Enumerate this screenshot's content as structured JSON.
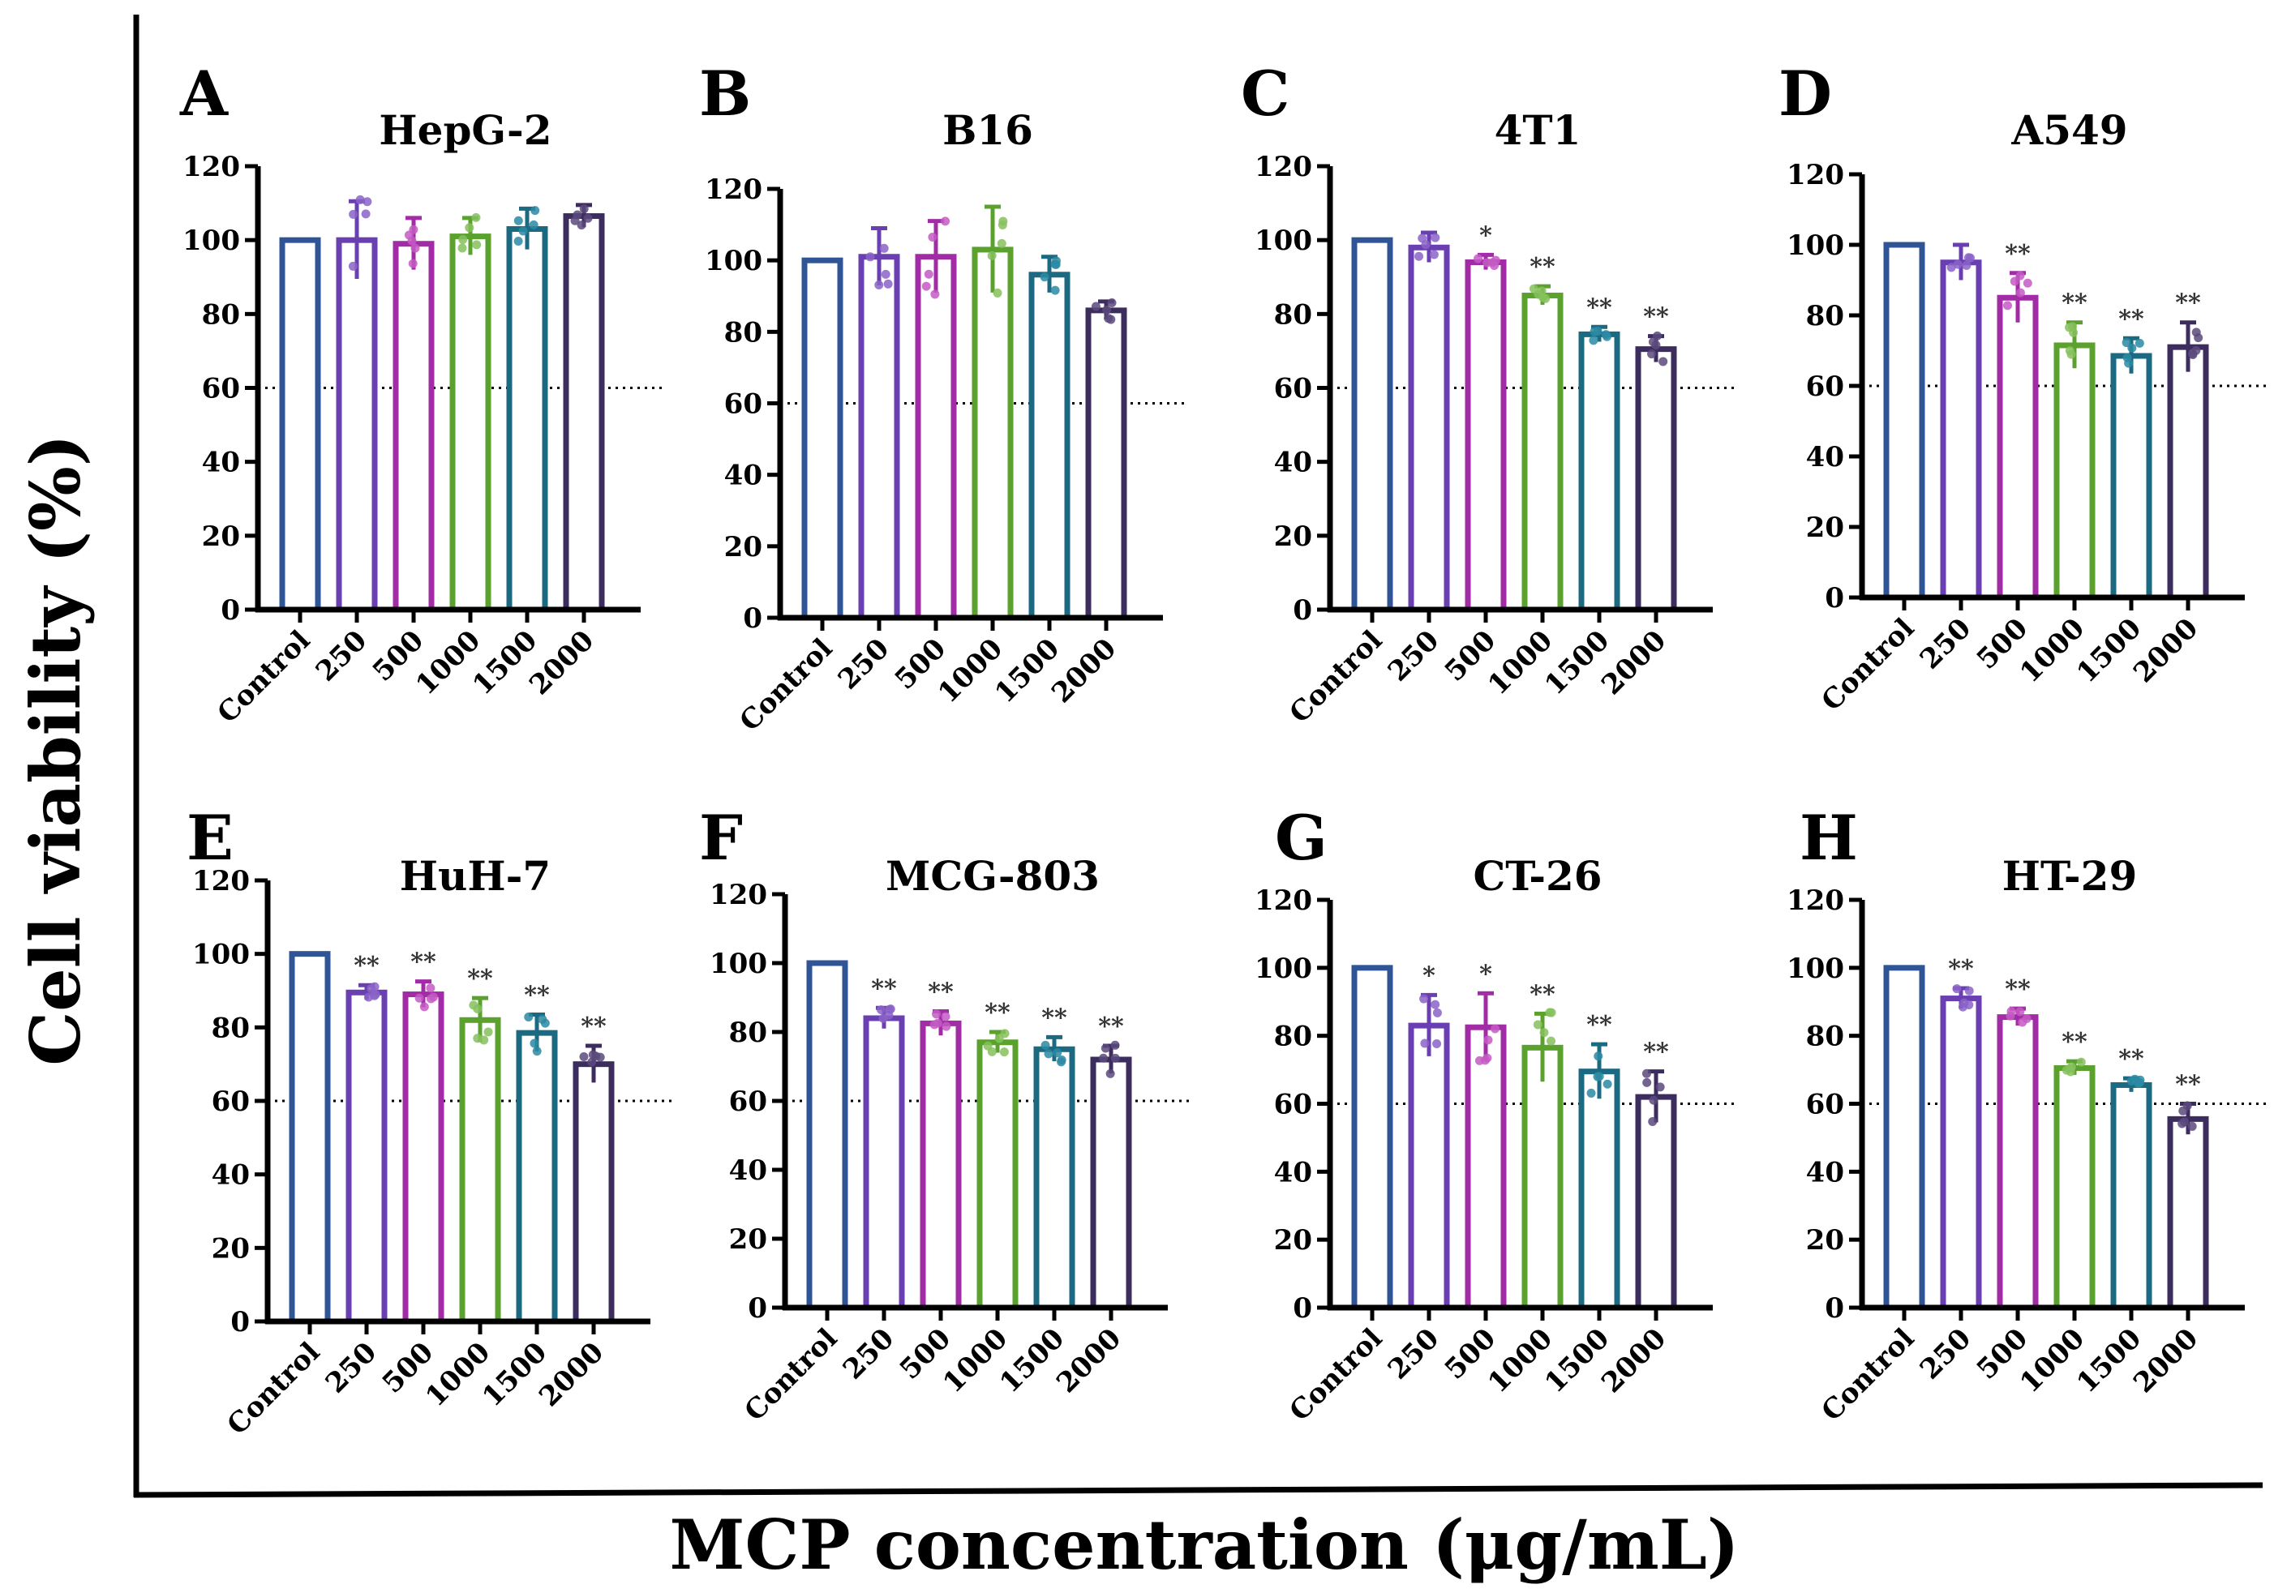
{
  "figure": {
    "ylabel": "Cell viability (%)",
    "xlabel": "MCP concentration (μg/mL)"
  },
  "style": {
    "bar_colors": [
      "#2f5597",
      "#6a3fb2",
      "#a22ca6",
      "#5aa12d",
      "#1b6a82",
      "#3d2d5e"
    ],
    "dot_colors": [
      "#2f5597",
      "#8a63c8",
      "#c45ac4",
      "#86c15d",
      "#2a8aa3",
      "#5a4a7c"
    ],
    "axis_color": "#000000",
    "reference_line_value": 60
  },
  "chart_data": [
    {
      "type": "bar",
      "letter": "A",
      "title": "HepG-2",
      "categories": [
        "Control",
        "250",
        "500",
        "1000",
        "1500",
        "2000"
      ],
      "values": [
        100,
        100,
        99,
        101,
        103,
        106.5
      ],
      "errors": [
        0,
        10.5,
        7,
        5,
        5.5,
        3
      ],
      "significance": [
        "",
        "",
        "",
        "",
        "",
        ""
      ],
      "ylim": [
        0,
        120
      ],
      "yticks": [
        0,
        20,
        40,
        60,
        80,
        100,
        120
      ],
      "reference_line": 60
    },
    {
      "type": "bar",
      "letter": "B",
      "title": "B16",
      "categories": [
        "Control",
        "250",
        "500",
        "1000",
        "1500",
        "2000"
      ],
      "values": [
        100,
        101,
        101,
        103,
        96,
        86
      ],
      "errors": [
        0,
        8,
        10,
        12,
        5,
        2.5
      ],
      "significance": [
        "",
        "",
        "",
        "",
        "",
        ""
      ],
      "ylim": [
        0,
        120
      ],
      "yticks": [
        0,
        20,
        40,
        60,
        80,
        100,
        120
      ],
      "reference_line": 60
    },
    {
      "type": "bar",
      "letter": "C",
      "title": "4T1",
      "categories": [
        "Control",
        "250",
        "500",
        "1000",
        "1500",
        "2000"
      ],
      "values": [
        100,
        98,
        94,
        85,
        74.5,
        70.5
      ],
      "errors": [
        0,
        4,
        2,
        2.5,
        2,
        3.5
      ],
      "significance": [
        "",
        "",
        "*",
        "**",
        "**",
        "**"
      ],
      "ylim": [
        0,
        120
      ],
      "yticks": [
        0,
        20,
        40,
        60,
        80,
        100,
        120
      ],
      "reference_line": 60
    },
    {
      "type": "bar",
      "letter": "D",
      "title": "A549",
      "categories": [
        "Control",
        "250",
        "500",
        "1000",
        "1500",
        "2000"
      ],
      "values": [
        100,
        95,
        85,
        71.5,
        68.5,
        71
      ],
      "errors": [
        0,
        5,
        7,
        6.5,
        5,
        7
      ],
      "significance": [
        "",
        "",
        "**",
        "**",
        "**",
        "**"
      ],
      "ylim": [
        0,
        120
      ],
      "yticks": [
        0,
        20,
        40,
        60,
        80,
        100,
        120
      ],
      "reference_line": 60
    },
    {
      "type": "bar",
      "letter": "E",
      "title": "HuH-7",
      "categories": [
        "Control",
        "250",
        "500",
        "1000",
        "1500",
        "2000"
      ],
      "values": [
        100,
        89.5,
        89,
        82,
        78.5,
        70
      ],
      "errors": [
        0,
        2,
        3.5,
        6,
        5,
        5
      ],
      "significance": [
        "",
        "**",
        "**",
        "**",
        "**",
        "**"
      ],
      "ylim": [
        0,
        120
      ],
      "yticks": [
        0,
        20,
        40,
        60,
        80,
        100,
        120
      ],
      "reference_line": 60
    },
    {
      "type": "bar",
      "letter": "F",
      "title": "MCG-803",
      "categories": [
        "Control",
        "250",
        "500",
        "1000",
        "1500",
        "2000"
      ],
      "values": [
        100,
        84,
        82.5,
        77,
        75,
        72
      ],
      "errors": [
        0,
        3,
        3.5,
        3,
        3.5,
        4
      ],
      "significance": [
        "",
        "**",
        "**",
        "**",
        "**",
        "**"
      ],
      "ylim": [
        0,
        120
      ],
      "yticks": [
        0,
        20,
        40,
        60,
        80,
        100,
        120
      ],
      "reference_line": 60
    },
    {
      "type": "bar",
      "letter": "G",
      "title": "CT-26",
      "categories": [
        "Control",
        "250",
        "500",
        "1000",
        "1500",
        "2000"
      ],
      "values": [
        100,
        83,
        82.5,
        76.5,
        69.5,
        62
      ],
      "errors": [
        0,
        9,
        10,
        10,
        8,
        7.5
      ],
      "significance": [
        "",
        "*",
        "*",
        "**",
        "**",
        "**"
      ],
      "ylim": [
        0,
        120
      ],
      "yticks": [
        0,
        20,
        40,
        60,
        80,
        100,
        120
      ],
      "reference_line": 60
    },
    {
      "type": "bar",
      "letter": "H",
      "title": "HT-29",
      "categories": [
        "Control",
        "250",
        "500",
        "1000",
        "1500",
        "2000"
      ],
      "values": [
        100,
        91,
        85.5,
        70.5,
        65.5,
        55.5
      ],
      "errors": [
        0,
        3,
        2.5,
        2,
        2,
        4.5
      ],
      "significance": [
        "",
        "**",
        "**",
        "**",
        "**",
        "**"
      ],
      "ylim": [
        0,
        120
      ],
      "yticks": [
        0,
        20,
        40,
        60,
        80,
        100,
        120
      ],
      "reference_line": 60
    }
  ]
}
